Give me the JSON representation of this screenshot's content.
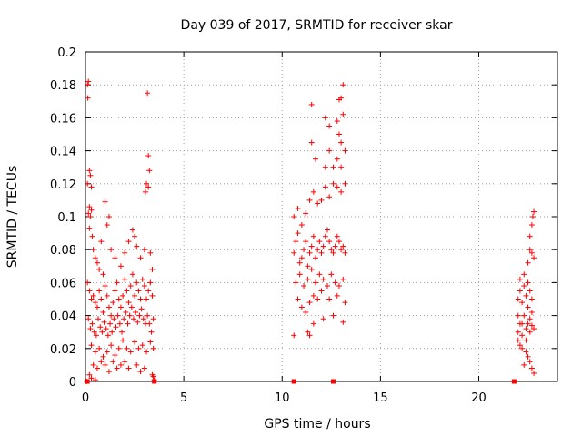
{
  "chart_data": {
    "type": "scatter",
    "title": "Day 039 of 2017, SRMTID for receiver skar",
    "xlabel": "GPS time / hours",
    "ylabel": "SRMTID / TECUs",
    "xlim": [
      0,
      24
    ],
    "ylim": [
      0,
      0.2
    ],
    "x_ticks": [
      0,
      5,
      10,
      15,
      20
    ],
    "x_tick_labels": [
      "0",
      "5",
      "10",
      "15",
      "20"
    ],
    "y_ticks": [
      0,
      0.02,
      0.04,
      0.06,
      0.08,
      0.1,
      0.12,
      0.14,
      0.16,
      0.18,
      0.2
    ],
    "y_tick_labels": [
      "0",
      "0.02",
      "0.04",
      "0.06",
      "0.08",
      "0.1",
      "0.12",
      "0.14",
      "0.16",
      "0.18",
      "0.2"
    ],
    "grid": true,
    "marker": "+",
    "color": "#ff0000",
    "series": [
      {
        "points": [
          [
            0.1,
            0.18
          ],
          [
            0.15,
            0.182
          ],
          [
            0.12,
            0.172
          ],
          [
            3.15,
            0.175
          ],
          [
            3.2,
            0.137
          ],
          [
            3.25,
            0.128
          ],
          [
            0.2,
            0.128
          ],
          [
            0.25,
            0.125
          ],
          [
            0.3,
            0.118
          ],
          [
            0.1,
            0.12
          ],
          [
            0.2,
            0.106
          ],
          [
            0.15,
            0.102
          ],
          [
            0.25,
            0.1
          ],
          [
            0.3,
            0.104
          ],
          [
            1.0,
            0.109
          ],
          [
            1.1,
            0.095
          ],
          [
            1.2,
            0.1
          ],
          [
            3.1,
            0.12
          ],
          [
            3.2,
            0.118
          ],
          [
            3.05,
            0.115
          ],
          [
            0.2,
            0.093
          ],
          [
            0.35,
            0.088
          ],
          [
            0.4,
            0.08
          ],
          [
            0.5,
            0.075
          ],
          [
            0.6,
            0.072
          ],
          [
            0.7,
            0.068
          ],
          [
            0.8,
            0.085
          ],
          [
            0.9,
            0.065
          ],
          [
            1.3,
            0.08
          ],
          [
            1.5,
            0.075
          ],
          [
            1.8,
            0.07
          ],
          [
            2.0,
            0.078
          ],
          [
            2.2,
            0.085
          ],
          [
            2.4,
            0.092
          ],
          [
            2.5,
            0.088
          ],
          [
            2.6,
            0.082
          ],
          [
            2.8,
            0.075
          ],
          [
            3.0,
            0.08
          ],
          [
            3.3,
            0.078
          ],
          [
            3.4,
            0.068
          ],
          [
            0.1,
            0.06
          ],
          [
            0.2,
            0.055
          ],
          [
            0.3,
            0.05
          ],
          [
            0.4,
            0.052
          ],
          [
            0.5,
            0.048
          ],
          [
            0.6,
            0.045
          ],
          [
            0.7,
            0.055
          ],
          [
            0.8,
            0.05
          ],
          [
            0.9,
            0.042
          ],
          [
            1.0,
            0.058
          ],
          [
            1.1,
            0.052
          ],
          [
            1.2,
            0.045
          ],
          [
            1.3,
            0.04
          ],
          [
            1.4,
            0.048
          ],
          [
            1.5,
            0.055
          ],
          [
            1.6,
            0.06
          ],
          [
            1.7,
            0.05
          ],
          [
            1.8,
            0.045
          ],
          [
            1.9,
            0.052
          ],
          [
            2.0,
            0.062
          ],
          [
            2.1,
            0.055
          ],
          [
            2.2,
            0.048
          ],
          [
            2.3,
            0.058
          ],
          [
            2.4,
            0.065
          ],
          [
            2.5,
            0.052
          ],
          [
            2.6,
            0.06
          ],
          [
            2.7,
            0.055
          ],
          [
            2.8,
            0.05
          ],
          [
            2.9,
            0.062
          ],
          [
            3.0,
            0.058
          ],
          [
            3.1,
            0.05
          ],
          [
            3.2,
            0.055
          ],
          [
            3.3,
            0.06
          ],
          [
            3.4,
            0.052
          ],
          [
            0.15,
            0.038
          ],
          [
            0.25,
            0.032
          ],
          [
            0.35,
            0.035
          ],
          [
            0.45,
            0.03
          ],
          [
            0.55,
            0.028
          ],
          [
            0.65,
            0.038
          ],
          [
            0.75,
            0.033
          ],
          [
            0.85,
            0.03
          ],
          [
            0.95,
            0.036
          ],
          [
            1.05,
            0.032
          ],
          [
            1.15,
            0.028
          ],
          [
            1.25,
            0.035
          ],
          [
            1.35,
            0.03
          ],
          [
            1.45,
            0.038
          ],
          [
            1.55,
            0.033
          ],
          [
            1.65,
            0.04
          ],
          [
            1.75,
            0.035
          ],
          [
            1.85,
            0.03
          ],
          [
            1.95,
            0.038
          ],
          [
            2.05,
            0.042
          ],
          [
            2.15,
            0.035
          ],
          [
            2.25,
            0.04
          ],
          [
            2.35,
            0.045
          ],
          [
            2.45,
            0.038
          ],
          [
            2.55,
            0.042
          ],
          [
            2.65,
            0.036
          ],
          [
            2.75,
            0.04
          ],
          [
            2.85,
            0.044
          ],
          [
            2.95,
            0.038
          ],
          [
            3.05,
            0.035
          ],
          [
            3.15,
            0.04
          ],
          [
            3.25,
            0.035
          ],
          [
            3.35,
            0.03
          ],
          [
            3.45,
            0.038
          ],
          [
            0.3,
            0.022
          ],
          [
            0.5,
            0.018
          ],
          [
            0.7,
            0.02
          ],
          [
            0.9,
            0.015
          ],
          [
            1.1,
            0.018
          ],
          [
            1.3,
            0.022
          ],
          [
            1.5,
            0.016
          ],
          [
            1.7,
            0.02
          ],
          [
            1.9,
            0.025
          ],
          [
            2.1,
            0.02
          ],
          [
            2.3,
            0.018
          ],
          [
            2.5,
            0.024
          ],
          [
            2.7,
            0.02
          ],
          [
            2.9,
            0.022
          ],
          [
            3.1,
            0.018
          ],
          [
            3.3,
            0.024
          ],
          [
            3.45,
            0.02
          ],
          [
            0.4,
            0.01
          ],
          [
            0.6,
            0.008
          ],
          [
            0.8,
            0.012
          ],
          [
            1.0,
            0.01
          ],
          [
            1.2,
            0.006
          ],
          [
            1.4,
            0.012
          ],
          [
            1.6,
            0.008
          ],
          [
            1.8,
            0.01
          ],
          [
            2.0,
            0.012
          ],
          [
            2.2,
            0.008
          ],
          [
            2.6,
            0.01
          ],
          [
            2.8,
            0.006
          ],
          [
            3.0,
            0.008
          ],
          [
            3.4,
            0.004
          ],
          [
            0.2,
            0.004
          ],
          [
            0.3,
            0.002
          ],
          [
            0.5,
            0.001
          ],
          [
            0.05,
            0.0
          ],
          [
            3.5,
            0.001
          ],
          [
            3.45,
            0.003
          ],
          [
            10.6,
            0.078
          ],
          [
            10.7,
            0.085
          ],
          [
            10.8,
            0.09
          ],
          [
            10.9,
            0.072
          ],
          [
            11.0,
            0.075
          ],
          [
            11.1,
            0.08
          ],
          [
            11.2,
            0.085
          ],
          [
            11.3,
            0.07
          ],
          [
            11.4,
            0.078
          ],
          [
            11.5,
            0.082
          ],
          [
            11.6,
            0.088
          ],
          [
            11.7,
            0.075
          ],
          [
            11.8,
            0.08
          ],
          [
            11.9,
            0.085
          ],
          [
            12.0,
            0.078
          ],
          [
            12.1,
            0.082
          ],
          [
            12.2,
            0.088
          ],
          [
            12.3,
            0.092
          ],
          [
            12.4,
            0.085
          ],
          [
            12.5,
            0.08
          ],
          [
            12.6,
            0.078
          ],
          [
            12.7,
            0.082
          ],
          [
            12.8,
            0.088
          ],
          [
            12.9,
            0.085
          ],
          [
            13.0,
            0.08
          ],
          [
            13.1,
            0.082
          ],
          [
            13.2,
            0.078
          ],
          [
            10.6,
            0.1
          ],
          [
            10.8,
            0.105
          ],
          [
            11.0,
            0.095
          ],
          [
            11.2,
            0.102
          ],
          [
            11.4,
            0.11
          ],
          [
            11.6,
            0.115
          ],
          [
            11.8,
            0.108
          ],
          [
            12.0,
            0.11
          ],
          [
            12.2,
            0.118
          ],
          [
            12.4,
            0.112
          ],
          [
            12.6,
            0.12
          ],
          [
            12.8,
            0.118
          ],
          [
            13.0,
            0.115
          ],
          [
            13.2,
            0.12
          ],
          [
            10.7,
            0.06
          ],
          [
            10.9,
            0.065
          ],
          [
            11.1,
            0.058
          ],
          [
            11.3,
            0.062
          ],
          [
            11.5,
            0.068
          ],
          [
            11.7,
            0.06
          ],
          [
            11.9,
            0.065
          ],
          [
            12.1,
            0.062
          ],
          [
            12.3,
            0.058
          ],
          [
            12.5,
            0.065
          ],
          [
            12.7,
            0.06
          ],
          [
            12.9,
            0.058
          ],
          [
            13.1,
            0.062
          ],
          [
            10.8,
            0.05
          ],
          [
            11.0,
            0.045
          ],
          [
            11.2,
            0.042
          ],
          [
            11.4,
            0.048
          ],
          [
            11.6,
            0.052
          ],
          [
            11.8,
            0.05
          ],
          [
            12.0,
            0.055
          ],
          [
            12.4,
            0.05
          ],
          [
            12.8,
            0.052
          ],
          [
            13.2,
            0.048
          ],
          [
            11.5,
            0.168
          ],
          [
            12.2,
            0.16
          ],
          [
            12.4,
            0.155
          ],
          [
            13.1,
            0.18
          ],
          [
            13.0,
            0.172
          ],
          [
            12.9,
            0.171
          ],
          [
            13.1,
            0.162
          ],
          [
            12.8,
            0.158
          ],
          [
            12.2,
            0.13
          ],
          [
            12.4,
            0.14
          ],
          [
            12.9,
            0.15
          ],
          [
            13.0,
            0.145
          ],
          [
            13.2,
            0.14
          ],
          [
            11.5,
            0.145
          ],
          [
            11.7,
            0.135
          ],
          [
            12.6,
            0.13
          ],
          [
            12.8,
            0.135
          ],
          [
            13.0,
            0.13
          ],
          [
            10.6,
            0.028
          ],
          [
            11.3,
            0.03
          ],
          [
            11.6,
            0.035
          ],
          [
            12.1,
            0.038
          ],
          [
            12.6,
            0.04
          ],
          [
            13.1,
            0.036
          ],
          [
            11.4,
            0.028
          ],
          [
            22.0,
            0.03
          ],
          [
            22.1,
            0.035
          ],
          [
            22.2,
            0.028
          ],
          [
            22.3,
            0.04
          ],
          [
            22.4,
            0.032
          ],
          [
            22.5,
            0.045
          ],
          [
            22.6,
            0.038
          ],
          [
            22.7,
            0.042
          ],
          [
            22.0,
            0.05
          ],
          [
            22.1,
            0.055
          ],
          [
            22.2,
            0.048
          ],
          [
            22.3,
            0.058
          ],
          [
            22.4,
            0.052
          ],
          [
            22.5,
            0.06
          ],
          [
            22.6,
            0.055
          ],
          [
            22.7,
            0.05
          ],
          [
            22.1,
            0.062
          ],
          [
            22.3,
            0.065
          ],
          [
            22.5,
            0.072
          ],
          [
            22.6,
            0.08
          ],
          [
            22.7,
            0.078
          ],
          [
            22.8,
            0.075
          ],
          [
            22.6,
            0.088
          ],
          [
            22.7,
            0.095
          ],
          [
            22.75,
            0.1
          ],
          [
            22.8,
            0.103
          ],
          [
            22.0,
            0.025
          ],
          [
            22.2,
            0.02
          ],
          [
            22.4,
            0.018
          ],
          [
            22.5,
            0.015
          ],
          [
            22.6,
            0.012
          ],
          [
            22.7,
            0.008
          ],
          [
            22.8,
            0.005
          ],
          [
            22.3,
            0.01
          ],
          [
            22.1,
            0.022
          ],
          [
            22.4,
            0.025
          ],
          [
            22.2,
            0.035
          ],
          [
            22.6,
            0.03
          ],
          [
            22.7,
            0.034
          ],
          [
            22.8,
            0.032
          ],
          [
            22.0,
            0.04
          ],
          [
            22.5,
            0.035
          ]
        ]
      }
    ],
    "zero_markers_x": [
      0.1,
      3.5,
      10.6,
      12.6,
      21.8
    ]
  }
}
